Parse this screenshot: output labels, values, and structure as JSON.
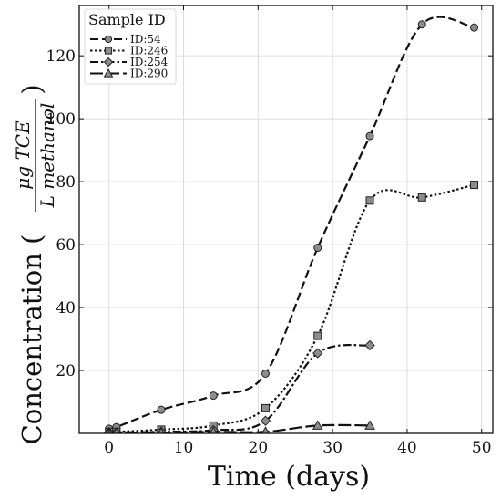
{
  "chart_data": {
    "type": "line",
    "xlabel": "Time (days)",
    "ylabel_prefix": "Concentration (",
    "ylabel_num": "μg TCE",
    "ylabel_den": "L methanol",
    "ylabel_suffix": ")",
    "xlim": [
      -4,
      51.5
    ],
    "ylim": [
      0,
      136
    ],
    "xticks": [
      0,
      10,
      20,
      30,
      40,
      50
    ],
    "yticks": [
      20,
      40,
      60,
      80,
      100,
      120
    ],
    "grid": true,
    "legend": {
      "title": "Sample ID",
      "placement": "top-left"
    },
    "series": [
      {
        "name": "ID:54",
        "marker": "circle",
        "dash": "dashed",
        "x": [
          0,
          1,
          7,
          14,
          21,
          28,
          35,
          42,
          49
        ],
        "y": [
          1.5,
          2,
          7.5,
          12,
          19,
          59,
          94.5,
          130,
          129
        ]
      },
      {
        "name": "ID:246",
        "marker": "square",
        "dash": "dotted",
        "x": [
          0,
          1,
          7,
          14,
          21,
          28,
          35,
          42,
          49
        ],
        "y": [
          0.5,
          0.5,
          1.2,
          2.5,
          8,
          31,
          74,
          75,
          79
        ]
      },
      {
        "name": "ID:254",
        "marker": "diamond",
        "dash": "dashdot",
        "x": [
          0,
          1,
          7,
          14,
          21,
          28,
          35
        ],
        "y": [
          0.3,
          0.3,
          0.5,
          1,
          4,
          25.5,
          28
        ]
      },
      {
        "name": "ID:290",
        "marker": "triangle",
        "dash": "longdash",
        "x": [
          0,
          1,
          7,
          14,
          21,
          28,
          35
        ],
        "y": [
          0.2,
          0.2,
          0.2,
          0.5,
          0.5,
          2.5,
          2.5
        ]
      }
    ]
  }
}
